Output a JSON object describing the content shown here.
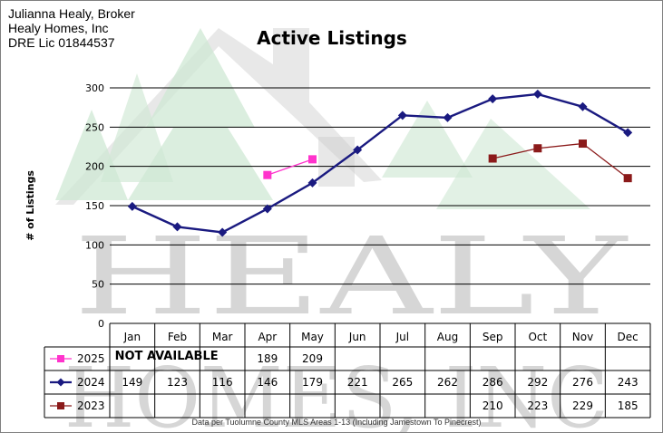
{
  "header": {
    "line1": "Julianna Healy, Broker",
    "line2": "Healy Homes, Inc",
    "line3": "DRE Lic 01844537"
  },
  "watermark": {
    "line1": "HEALY",
    "line2": "HOMES, INC"
  },
  "footnote": "Data per Tuolumne County MLS Areas 1-13 (Including Jamestown To Pinecrest)",
  "colors": {
    "s2025": "#ff33cc",
    "s2024": "#1a1a80",
    "s2023": "#8b1a1a"
  },
  "chart_data": {
    "type": "line",
    "title": "Active Listings",
    "ylabel": "# of Listings",
    "xlabel": "",
    "ylim": [
      0,
      300
    ],
    "yticks": [
      0,
      50,
      100,
      150,
      200,
      250,
      300
    ],
    "grid": true,
    "categories": [
      "Jan",
      "Feb",
      "Mar",
      "Apr",
      "May",
      "Jun",
      "Jul",
      "Aug",
      "Sep",
      "Oct",
      "Nov",
      "Dec"
    ],
    "series": [
      {
        "name": "2025",
        "marker": "square",
        "values": [
          null,
          null,
          null,
          189,
          209,
          null,
          null,
          null,
          null,
          null,
          null,
          null
        ]
      },
      {
        "name": "2024",
        "marker": "diamond",
        "values": [
          149,
          123,
          116,
          146,
          179,
          221,
          265,
          262,
          286,
          292,
          276,
          243
        ]
      },
      {
        "name": "2023",
        "marker": "square",
        "values": [
          null,
          null,
          null,
          null,
          null,
          null,
          null,
          null,
          210,
          223,
          229,
          185
        ]
      }
    ],
    "table_annotation": "NOT AVAILABLE"
  }
}
